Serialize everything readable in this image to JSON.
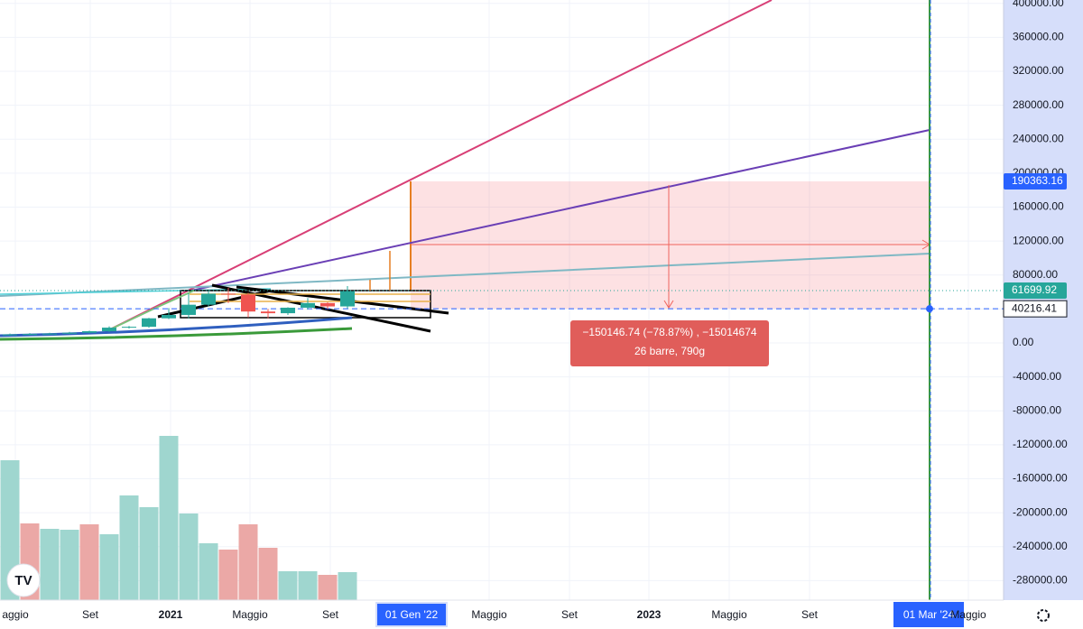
{
  "chart_data": {
    "type": "candlestick",
    "ylim": [
      -303000,
      404000
    ],
    "yticks": [
      {
        "value": 400000,
        "label": "400000.00"
      },
      {
        "value": 360000,
        "label": "360000.00"
      },
      {
        "value": 320000,
        "label": "320000.00"
      },
      {
        "value": 280000,
        "label": "280000.00"
      },
      {
        "value": 240000,
        "label": "240000.00"
      },
      {
        "value": 200000,
        "label": "200000.00"
      },
      {
        "value": 160000,
        "label": "160000.00"
      },
      {
        "value": 120000,
        "label": "120000.00"
      },
      {
        "value": 80000,
        "label": "80000.00"
      },
      {
        "value": 40000,
        "label": "40000.00"
      },
      {
        "value": 0,
        "label": "0.00"
      },
      {
        "value": -40000,
        "label": "-40000.00"
      },
      {
        "value": -80000,
        "label": "-80000.00"
      },
      {
        "value": -120000,
        "label": "-120000.00"
      },
      {
        "value": -160000,
        "label": "-160000.00"
      },
      {
        "value": -200000,
        "label": "-200000.00"
      },
      {
        "value": -240000,
        "label": "-240000.00"
      },
      {
        "value": -280000,
        "label": "-280000.00"
      }
    ],
    "time_labels": [
      "aggio",
      "Set",
      "2021",
      "Maggio",
      "Set",
      "01 Gen '22",
      "Maggio",
      "Set",
      "2023",
      "Maggio",
      "Set",
      "01 Mar '24",
      "Maggio"
    ],
    "up_color": "#26a69a",
    "down_color": "#ef5350",
    "open": [
      9000,
      10000,
      10500,
      11000,
      12000,
      13800,
      18000,
      19000,
      29000,
      33000,
      45000,
      58000,
      57000,
      37000,
      35000,
      41500,
      47000,
      43000
    ],
    "high": [
      11000,
      11500,
      12000,
      13000,
      14500,
      19500,
      20000,
      29500,
      41000,
      58500,
      62000,
      64800,
      59000,
      40000,
      42000,
      52900,
      48000,
      67000
    ],
    "low": [
      8500,
      9000,
      10000,
      10500,
      11500,
      13000,
      17000,
      18000,
      28000,
      29000,
      43000,
      47000,
      30000,
      29000,
      33000,
      39500,
      40000,
      40500
    ],
    "close": [
      10000,
      10500,
      11000,
      12000,
      13800,
      18000,
      19000,
      29000,
      33000,
      45000,
      58000,
      57000,
      37000,
      35000,
      41500,
      47000,
      43000,
      61000
    ],
    "volume": [
      155,
      85,
      79,
      78,
      84,
      73,
      116,
      103,
      182,
      96,
      63,
      56,
      84,
      58,
      32,
      32,
      28,
      31
    ],
    "volume_colors": [
      "#9fd6cf",
      "#eba8a6",
      "#9fd6cf",
      "#9fd6cf",
      "#eba8a6",
      "#9fd6cf",
      "#9fd6cf",
      "#9fd6cf",
      "#9fd6cf",
      "#9fd6cf",
      "#9fd6cf",
      "#eba8a6",
      "#eba8a6",
      "#eba8a6",
      "#9fd6cf",
      "#9fd6cf",
      "#eba8a6",
      "#9fd6cf"
    ],
    "price_labels": [
      {
        "value": 190363.16,
        "color": "#2962ff"
      },
      {
        "value": 61699.92,
        "color": "#26a69a"
      },
      {
        "value": 40216.41,
        "color": "#2962ff"
      }
    ],
    "measure": {
      "line1": "−150146.74 (−78.87%) , −15014674",
      "line2": "26 barre, 790g"
    }
  }
}
